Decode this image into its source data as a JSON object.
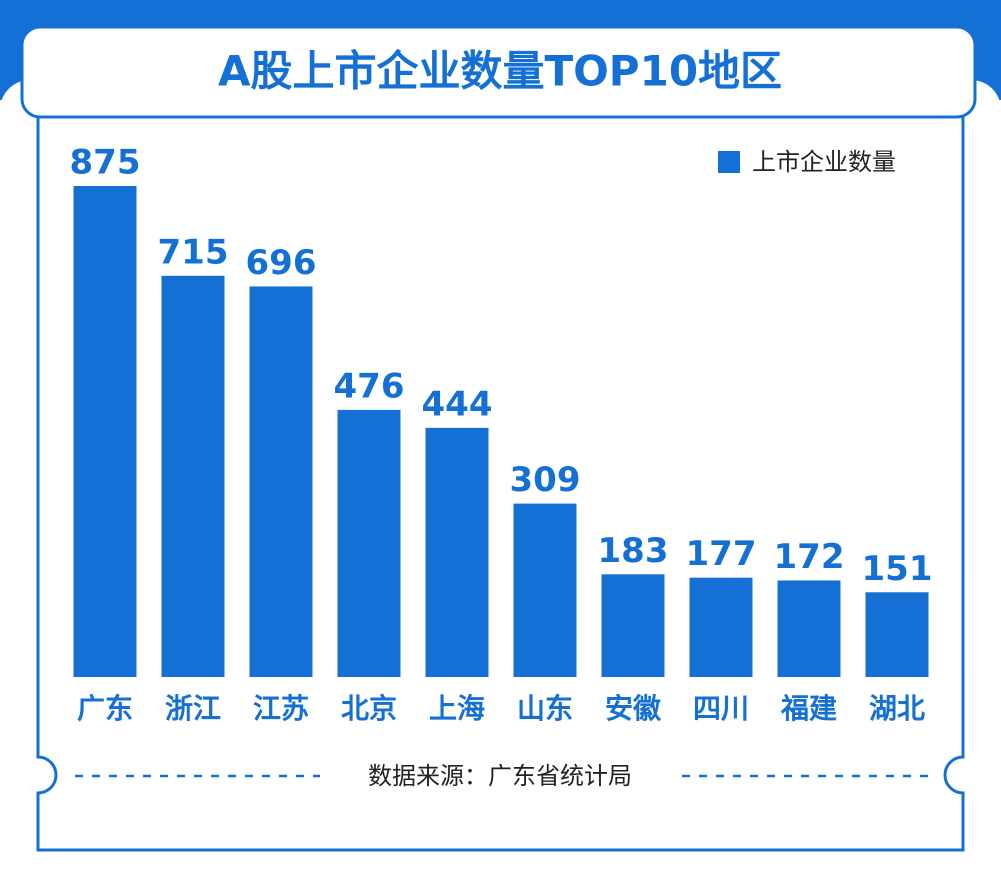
{
  "chart_data": {
    "type": "bar",
    "title": "A股上市企业数量TOP10地区",
    "categories": [
      "广东",
      "浙江",
      "江苏",
      "北京",
      "上海",
      "山东",
      "安徽",
      "四川",
      "福建",
      "湖北"
    ],
    "series": [
      {
        "name": "上市企业数量",
        "color": "#1570d6",
        "values": [
          875,
          715,
          696,
          476,
          444,
          309,
          183,
          177,
          172,
          151
        ]
      }
    ],
    "legend": "top-right",
    "source": "数据来源：广东省统计局"
  }
}
